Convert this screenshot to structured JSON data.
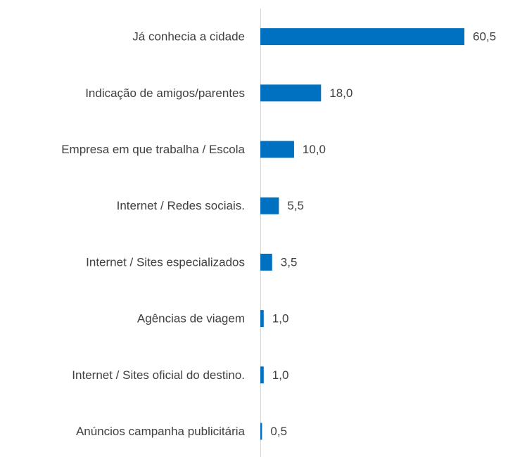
{
  "chart_data": {
    "type": "bar",
    "orientation": "horizontal",
    "categories": [
      "Já conhecia a cidade",
      "Indicação de amigos/parentes",
      "Empresa em que trabalha / Escola",
      "Internet / Redes sociais.",
      "Internet / Sites especializados",
      "Agências de viagem",
      "Internet / Sites oficial do destino.",
      "Anúncios campanha publicitária"
    ],
    "values": [
      60.5,
      18.0,
      10.0,
      5.5,
      3.5,
      1.0,
      1.0,
      0.5
    ],
    "value_labels": [
      "60,5",
      "18,0",
      "10,0",
      "5,5",
      "3,5",
      "1,0",
      "1,0",
      "0,5"
    ],
    "color": "#0070c0"
  }
}
